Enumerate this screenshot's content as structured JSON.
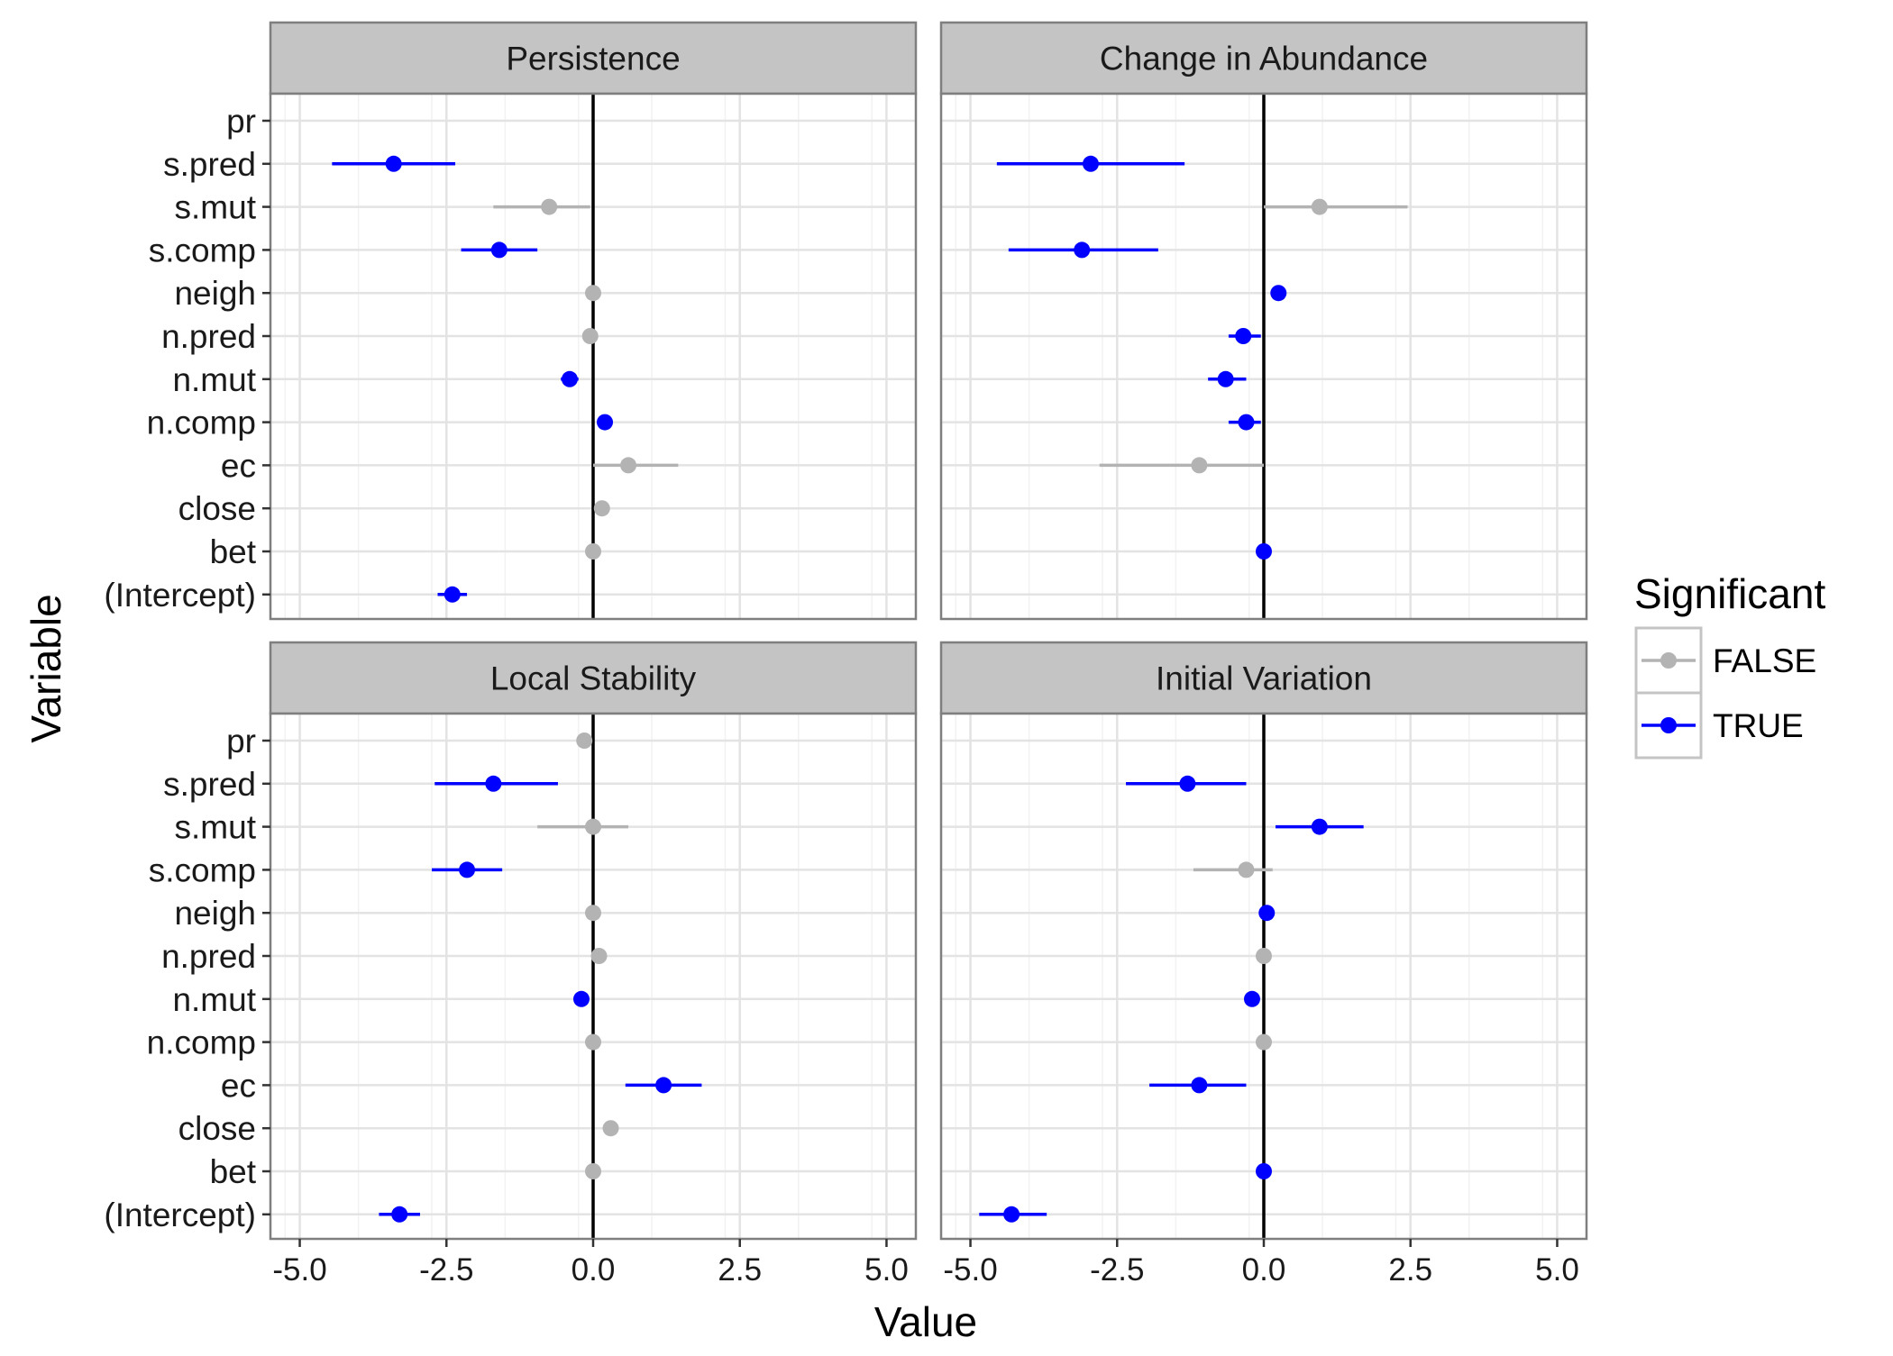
{
  "chart_data": {
    "type": "scatter",
    "subtype": "coefficient-plot-with-error-bars",
    "xlabel": "Value",
    "ylabel": "Variable",
    "xlim": [
      -5.5,
      5.5
    ],
    "x_ticks": [
      -5.0,
      -2.5,
      0.0,
      2.5,
      5.0
    ],
    "x_tick_labels": [
      "-5.0",
      "-2.5",
      "0.0",
      "2.5",
      "5.0"
    ],
    "variables": [
      "pr",
      "s.pred",
      "s.mut",
      "s.comp",
      "neigh",
      "n.pred",
      "n.mut",
      "n.comp",
      "ec",
      "close",
      "bet",
      "(Intercept)"
    ],
    "reference_line_x": 0,
    "grid": true,
    "legend": {
      "title": "Significant",
      "position": "right",
      "entries": [
        {
          "label": "FALSE",
          "color": "#b3b3b3"
        },
        {
          "label": "TRUE",
          "color": "#0000ff"
        }
      ]
    },
    "colors": {
      "FALSE": "#b3b3b3",
      "TRUE": "#0000ff",
      "strip": "#c4c4c4",
      "zero_line": "#000000"
    },
    "panels": [
      {
        "title": "Persistence",
        "points": [
          {
            "variable": "s.pred",
            "value": -3.4,
            "lower": -4.45,
            "upper": -2.35,
            "significant": true
          },
          {
            "variable": "s.mut",
            "value": -0.75,
            "lower": -1.7,
            "upper": -0.05,
            "significant": false
          },
          {
            "variable": "s.comp",
            "value": -1.6,
            "lower": -2.25,
            "upper": -0.95,
            "significant": true
          },
          {
            "variable": "neigh",
            "value": 0.0,
            "lower": 0.0,
            "upper": 0.0,
            "significant": false
          },
          {
            "variable": "n.pred",
            "value": -0.05,
            "lower": -0.05,
            "upper": -0.05,
            "significant": false
          },
          {
            "variable": "n.mut",
            "value": -0.4,
            "lower": -0.55,
            "upper": -0.25,
            "significant": true
          },
          {
            "variable": "n.comp",
            "value": 0.2,
            "lower": 0.2,
            "upper": 0.2,
            "significant": true
          },
          {
            "variable": "ec",
            "value": 0.6,
            "lower": 0.0,
            "upper": 1.45,
            "significant": false
          },
          {
            "variable": "close",
            "value": 0.15,
            "lower": 0.15,
            "upper": 0.15,
            "significant": false
          },
          {
            "variable": "bet",
            "value": 0.0,
            "lower": 0.0,
            "upper": 0.0,
            "significant": false
          },
          {
            "variable": "(Intercept)",
            "value": -2.4,
            "lower": -2.65,
            "upper": -2.15,
            "significant": true
          }
        ]
      },
      {
        "title": "Change in Abundance",
        "points": [
          {
            "variable": "s.pred",
            "value": -2.95,
            "lower": -4.55,
            "upper": -1.35,
            "significant": true
          },
          {
            "variable": "s.mut",
            "value": 0.95,
            "lower": 0.0,
            "upper": 2.45,
            "significant": false
          },
          {
            "variable": "s.comp",
            "value": -3.1,
            "lower": -4.35,
            "upper": -1.8,
            "significant": true
          },
          {
            "variable": "neigh",
            "value": 0.25,
            "lower": 0.25,
            "upper": 0.25,
            "significant": true
          },
          {
            "variable": "n.pred",
            "value": -0.35,
            "lower": -0.6,
            "upper": -0.05,
            "significant": true
          },
          {
            "variable": "n.mut",
            "value": -0.65,
            "lower": -0.95,
            "upper": -0.3,
            "significant": true
          },
          {
            "variable": "n.comp",
            "value": -0.3,
            "lower": -0.6,
            "upper": -0.05,
            "significant": true
          },
          {
            "variable": "ec",
            "value": -1.1,
            "lower": -2.8,
            "upper": 0.0,
            "significant": false
          },
          {
            "variable": "bet",
            "value": 0.0,
            "lower": 0.0,
            "upper": 0.0,
            "significant": true
          }
        ]
      },
      {
        "title": "Local Stability",
        "points": [
          {
            "variable": "pr",
            "value": -0.15,
            "lower": -0.15,
            "upper": -0.15,
            "significant": false
          },
          {
            "variable": "s.pred",
            "value": -1.7,
            "lower": -2.7,
            "upper": -0.6,
            "significant": true
          },
          {
            "variable": "s.mut",
            "value": 0.0,
            "lower": -0.95,
            "upper": 0.6,
            "significant": false
          },
          {
            "variable": "s.comp",
            "value": -2.15,
            "lower": -2.75,
            "upper": -1.55,
            "significant": true
          },
          {
            "variable": "neigh",
            "value": 0.0,
            "lower": 0.0,
            "upper": 0.0,
            "significant": false
          },
          {
            "variable": "n.pred",
            "value": 0.1,
            "lower": 0.1,
            "upper": 0.1,
            "significant": false
          },
          {
            "variable": "n.mut",
            "value": -0.2,
            "lower": -0.2,
            "upper": -0.2,
            "significant": true
          },
          {
            "variable": "n.comp",
            "value": 0.0,
            "lower": 0.0,
            "upper": 0.0,
            "significant": false
          },
          {
            "variable": "ec",
            "value": 1.2,
            "lower": 0.55,
            "upper": 1.85,
            "significant": true
          },
          {
            "variable": "close",
            "value": 0.3,
            "lower": 0.3,
            "upper": 0.3,
            "significant": false
          },
          {
            "variable": "bet",
            "value": 0.0,
            "lower": 0.0,
            "upper": 0.0,
            "significant": false
          },
          {
            "variable": "(Intercept)",
            "value": -3.3,
            "lower": -3.65,
            "upper": -2.95,
            "significant": true
          }
        ]
      },
      {
        "title": "Initial Variation",
        "points": [
          {
            "variable": "s.pred",
            "value": -1.3,
            "lower": -2.35,
            "upper": -0.3,
            "significant": true
          },
          {
            "variable": "s.mut",
            "value": 0.95,
            "lower": 0.2,
            "upper": 1.7,
            "significant": true
          },
          {
            "variable": "s.comp",
            "value": -0.3,
            "lower": -1.2,
            "upper": 0.15,
            "significant": false
          },
          {
            "variable": "neigh",
            "value": 0.05,
            "lower": 0.05,
            "upper": 0.05,
            "significant": true
          },
          {
            "variable": "n.pred",
            "value": 0.0,
            "lower": 0.0,
            "upper": 0.0,
            "significant": false
          },
          {
            "variable": "n.mut",
            "value": -0.2,
            "lower": -0.2,
            "upper": -0.2,
            "significant": true
          },
          {
            "variable": "n.comp",
            "value": 0.0,
            "lower": 0.0,
            "upper": 0.0,
            "significant": false
          },
          {
            "variable": "ec",
            "value": -1.1,
            "lower": -1.95,
            "upper": -0.3,
            "significant": true
          },
          {
            "variable": "bet",
            "value": 0.0,
            "lower": 0.0,
            "upper": 0.0,
            "significant": true
          },
          {
            "variable": "(Intercept)",
            "value": -4.3,
            "lower": -4.85,
            "upper": -3.7,
            "significant": true
          }
        ]
      }
    ]
  }
}
